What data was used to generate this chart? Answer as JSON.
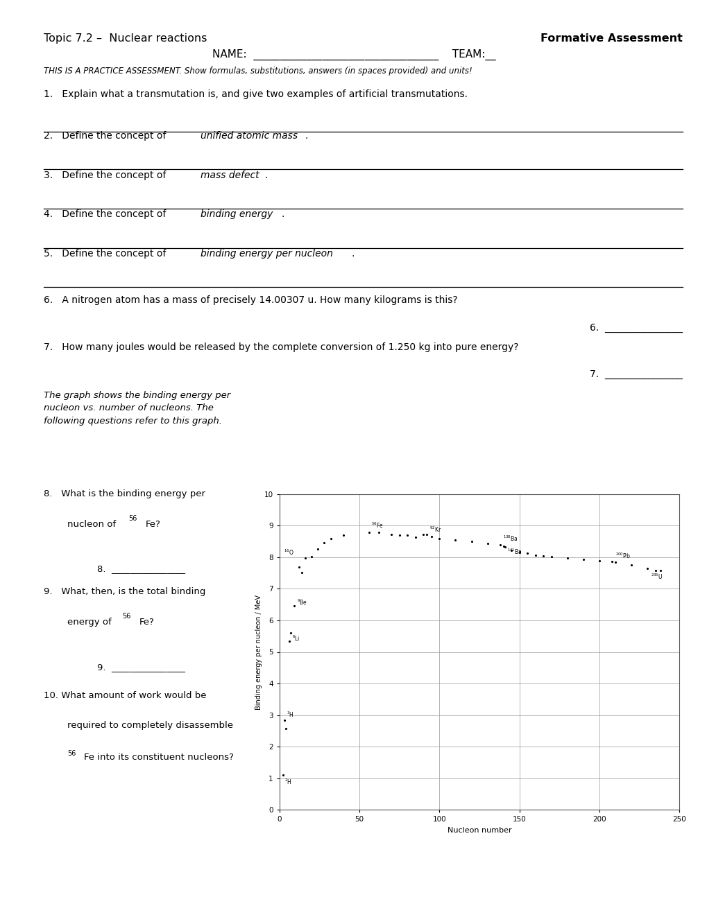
{
  "title_left": "Topic 7.2 –  Nuclear reactions",
  "title_right": "Formative Assessment",
  "practice_note": "THIS IS A PRACTICE ASSESSMENT. Show formulas, substitutions, answers (in spaces provided) and units!",
  "graph_xlabel": "Nucleon number",
  "graph_ylabel": "Binding energy per nucleon / MeV",
  "graph_xlim": [
    0,
    250
  ],
  "graph_ylim": [
    0,
    10
  ],
  "graph_xticks": [
    0,
    50,
    100,
    150,
    200,
    250
  ],
  "graph_yticks": [
    0,
    1,
    2,
    3,
    4,
    5,
    6,
    7,
    8,
    9,
    10
  ],
  "scatter_x": [
    2,
    3,
    4,
    6,
    7,
    9,
    12,
    14,
    16,
    20,
    24,
    28,
    32,
    40,
    56,
    62,
    70,
    75,
    80,
    85,
    90,
    92,
    95,
    100,
    110,
    120,
    130,
    138,
    140,
    141,
    145,
    150,
    155,
    160,
    165,
    170,
    180,
    190,
    200,
    208,
    210,
    220,
    230,
    235,
    238
  ],
  "scatter_y": [
    1.11,
    2.83,
    2.57,
    5.33,
    5.6,
    6.46,
    7.68,
    7.52,
    7.98,
    8.03,
    8.26,
    8.45,
    8.58,
    8.7,
    8.79,
    8.79,
    8.73,
    8.71,
    8.71,
    8.64,
    8.72,
    8.72,
    8.66,
    8.6,
    8.55,
    8.5,
    8.43,
    8.39,
    8.35,
    8.32,
    8.22,
    8.18,
    8.12,
    8.07,
    8.05,
    8.02,
    7.98,
    7.93,
    7.89,
    7.87,
    7.84,
    7.75,
    7.65,
    7.59,
    7.57
  ],
  "bg_color": "#ffffff",
  "text_color": "#000000"
}
